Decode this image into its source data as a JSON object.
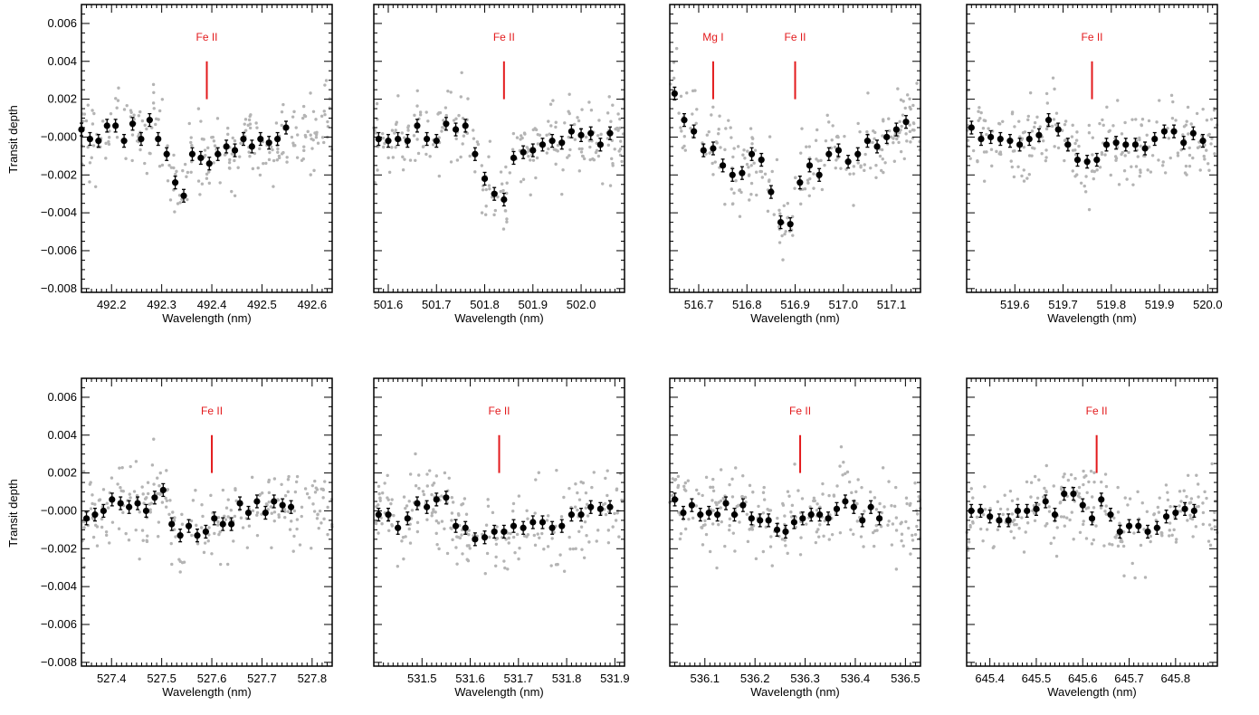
{
  "figure": {
    "ylabel": "Transit depth"
  },
  "colors": {
    "scatter": "#b4b4b4",
    "binned": "#000000",
    "marker": "#e31a1c",
    "axes": "#000000"
  },
  "chart_data": [
    {
      "type": "scatter",
      "line_label": "Fe II",
      "line_wavelength": 492.39,
      "xlabel": "Wavelength (nm)",
      "ylabel": "Transit depth",
      "xlim": [
        492.14,
        492.64
      ],
      "ylim": [
        -0.0082,
        0.007
      ],
      "xticks": [
        "492.2",
        "492.3",
        "492.4",
        "492.5",
        "492.6"
      ],
      "yticks": [
        "−0.008",
        "−0.006",
        "−0.004",
        "−0.002",
        "−0.000",
        "0.002",
        "0.004",
        "0.006"
      ],
      "series": [
        {
          "values": [
            [
              492.14,
              0.0004
            ],
            [
              492.157,
              -0.0001
            ],
            [
              492.174,
              -0.0002
            ],
            [
              492.191,
              0.0006
            ],
            [
              492.208,
              0.0006
            ],
            [
              492.225,
              -0.0002
            ],
            [
              492.242,
              0.0007
            ],
            [
              492.259,
              -0.0001
            ],
            [
              492.276,
              0.0009
            ],
            [
              492.293,
              -0.0001
            ],
            [
              492.31,
              -0.0009
            ],
            [
              492.327,
              -0.0024
            ],
            [
              492.344,
              -0.0031
            ],
            [
              492.361,
              -0.0009
            ],
            [
              492.378,
              -0.0011
            ],
            [
              492.395,
              -0.0014
            ],
            [
              492.412,
              -0.0009
            ],
            [
              492.429,
              -0.0005
            ],
            [
              492.446,
              -0.0007
            ],
            [
              492.463,
              -0.0001
            ],
            [
              492.48,
              -0.0005
            ],
            [
              492.497,
              -0.0001
            ],
            [
              492.514,
              -0.0003
            ],
            [
              492.531,
              -0.0001
            ],
            [
              492.548,
              0.0005
            ]
          ]
        }
      ]
    },
    {
      "type": "scatter",
      "line_label": "Fe II",
      "line_wavelength": 501.84,
      "xlabel": "Wavelength (nm)",
      "ylabel": "",
      "xlim": [
        501.57,
        502.09
      ],
      "ylim": [
        -0.0082,
        0.007
      ],
      "xticks": [
        "501.6",
        "501.7",
        "501.8",
        "501.9",
        "502.0"
      ],
      "series": [
        {
          "values": [
            [
              501.58,
              -0.0001
            ],
            [
              501.6,
              -0.0002
            ],
            [
              501.62,
              -0.0001
            ],
            [
              501.64,
              -0.0002
            ],
            [
              501.66,
              0.0006
            ],
            [
              501.68,
              -0.0001
            ],
            [
              501.7,
              -0.0002
            ],
            [
              501.72,
              0.0007
            ],
            [
              501.74,
              0.0004
            ],
            [
              501.76,
              0.0006
            ],
            [
              501.78,
              -0.0009
            ],
            [
              501.8,
              -0.0022
            ],
            [
              501.82,
              -0.003
            ],
            [
              501.84,
              -0.0033
            ],
            [
              501.86,
              -0.0011
            ],
            [
              501.88,
              -0.0008
            ],
            [
              501.9,
              -0.0007
            ],
            [
              501.92,
              -0.0004
            ],
            [
              501.94,
              -0.0002
            ],
            [
              501.96,
              -0.0003
            ],
            [
              501.98,
              0.0003
            ],
            [
              502.0,
              0.0001
            ],
            [
              502.02,
              0.0002
            ],
            [
              502.04,
              -0.0004
            ],
            [
              502.06,
              0.0002
            ]
          ]
        }
      ]
    },
    {
      "type": "scatter",
      "line_label": "Fe II",
      "line_wavelength": 516.9,
      "secondary_line": {
        "label": "Mg I",
        "wavelength": 516.73
      },
      "xlabel": "Wavelength (nm)",
      "ylabel": "",
      "xlim": [
        516.64,
        517.16
      ],
      "ylim": [
        -0.0082,
        0.007
      ],
      "xticks": [
        "516.7",
        "516.8",
        "516.9",
        "517.0",
        "517.1"
      ],
      "series": [
        {
          "values": [
            [
              516.65,
              0.0023
            ],
            [
              516.67,
              0.0009
            ],
            [
              516.69,
              0.0003
            ],
            [
              516.71,
              -0.0007
            ],
            [
              516.73,
              -0.0006
            ],
            [
              516.75,
              -0.0015
            ],
            [
              516.77,
              -0.002
            ],
            [
              516.79,
              -0.0019
            ],
            [
              516.81,
              -0.0009
            ],
            [
              516.83,
              -0.0012
            ],
            [
              516.85,
              -0.0029
            ],
            [
              516.87,
              -0.0045
            ],
            [
              516.89,
              -0.0046
            ],
            [
              516.91,
              -0.0024
            ],
            [
              516.93,
              -0.0015
            ],
            [
              516.95,
              -0.002
            ],
            [
              516.97,
              -0.0009
            ],
            [
              516.99,
              -0.0007
            ],
            [
              517.01,
              -0.0013
            ],
            [
              517.03,
              -0.0009
            ],
            [
              517.05,
              -0.0002
            ],
            [
              517.07,
              -0.0005
            ],
            [
              517.09,
              0.0
            ],
            [
              517.11,
              0.0004
            ],
            [
              517.13,
              0.0008
            ]
          ]
        }
      ]
    },
    {
      "type": "scatter",
      "line_label": "Fe II",
      "line_wavelength": 519.76,
      "xlabel": "Wavelength (nm)",
      "ylabel": "",
      "xlim": [
        519.5,
        520.02
      ],
      "ylim": [
        -0.0082,
        0.007
      ],
      "xticks": [
        "519.6",
        "519.7",
        "519.8",
        "519.9",
        "520.0"
      ],
      "series": [
        {
          "values": [
            [
              519.51,
              0.0005
            ],
            [
              519.53,
              -0.0001
            ],
            [
              519.55,
              0.0
            ],
            [
              519.57,
              -0.0001
            ],
            [
              519.59,
              -0.0002
            ],
            [
              519.61,
              -0.0004
            ],
            [
              519.63,
              -0.0001
            ],
            [
              519.65,
              0.0001
            ],
            [
              519.67,
              0.0009
            ],
            [
              519.69,
              0.0004
            ],
            [
              519.71,
              -0.0004
            ],
            [
              519.73,
              -0.0012
            ],
            [
              519.75,
              -0.0013
            ],
            [
              519.77,
              -0.0012
            ],
            [
              519.79,
              -0.0004
            ],
            [
              519.81,
              -0.0003
            ],
            [
              519.83,
              -0.0004
            ],
            [
              519.85,
              -0.0004
            ],
            [
              519.87,
              -0.0006
            ],
            [
              519.89,
              -0.0001
            ],
            [
              519.91,
              0.0003
            ],
            [
              519.93,
              0.0003
            ],
            [
              519.95,
              -0.0003
            ],
            [
              519.97,
              0.0002
            ],
            [
              519.99,
              -0.0002
            ]
          ]
        }
      ]
    },
    {
      "type": "scatter",
      "line_label": "Fe II",
      "line_wavelength": 527.6,
      "xlabel": "Wavelength (nm)",
      "ylabel": "Transit depth",
      "xlim": [
        527.34,
        527.84
      ],
      "ylim": [
        -0.0082,
        0.007
      ],
      "xticks": [
        "527.4",
        "527.5",
        "527.6",
        "527.7",
        "527.8"
      ],
      "yticks": [
        "−0.008",
        "−0.006",
        "−0.004",
        "−0.002",
        "−0.000",
        "0.002",
        "0.004",
        "0.006"
      ],
      "series": [
        {
          "values": [
            [
              527.35,
              -0.0004
            ],
            [
              527.367,
              -0.0002
            ],
            [
              527.384,
              0.0
            ],
            [
              527.401,
              0.0006
            ],
            [
              527.418,
              0.0004
            ],
            [
              527.435,
              0.0002
            ],
            [
              527.452,
              0.0004
            ],
            [
              527.469,
              0.0
            ],
            [
              527.486,
              0.0007
            ],
            [
              527.503,
              0.0011
            ],
            [
              527.52,
              -0.0007
            ],
            [
              527.537,
              -0.0013
            ],
            [
              527.554,
              -0.0008
            ],
            [
              527.571,
              -0.0013
            ],
            [
              527.588,
              -0.0011
            ],
            [
              527.605,
              -0.0004
            ],
            [
              527.622,
              -0.0007
            ],
            [
              527.639,
              -0.0007
            ],
            [
              527.656,
              0.0004
            ],
            [
              527.673,
              -0.0001
            ],
            [
              527.69,
              0.0005
            ],
            [
              527.707,
              -0.0001
            ],
            [
              527.724,
              0.0005
            ],
            [
              527.741,
              0.0003
            ],
            [
              527.758,
              0.0002
            ]
          ]
        }
      ]
    },
    {
      "type": "scatter",
      "line_label": "Fe II",
      "line_wavelength": 531.66,
      "xlabel": "Wavelength (nm)",
      "ylabel": "",
      "xlim": [
        531.4,
        531.92
      ],
      "ylim": [
        -0.0082,
        0.007
      ],
      "xticks": [
        "531.5",
        "531.6",
        "531.7",
        "531.8",
        "531.9"
      ],
      "series": [
        {
          "values": [
            [
              531.41,
              -0.0002
            ],
            [
              531.43,
              -0.0002
            ],
            [
              531.45,
              -0.0009
            ],
            [
              531.47,
              -0.0004
            ],
            [
              531.49,
              0.0004
            ],
            [
              531.51,
              0.0002
            ],
            [
              531.53,
              0.0006
            ],
            [
              531.55,
              0.0007
            ],
            [
              531.57,
              -0.0008
            ],
            [
              531.59,
              -0.0009
            ],
            [
              531.61,
              -0.0015
            ],
            [
              531.63,
              -0.0014
            ],
            [
              531.65,
              -0.0011
            ],
            [
              531.67,
              -0.0011
            ],
            [
              531.69,
              -0.0008
            ],
            [
              531.71,
              -0.0009
            ],
            [
              531.73,
              -0.0006
            ],
            [
              531.75,
              -0.0006
            ],
            [
              531.77,
              -0.0009
            ],
            [
              531.79,
              -0.0008
            ],
            [
              531.81,
              -0.0002
            ],
            [
              531.83,
              -0.0002
            ],
            [
              531.85,
              0.0002
            ],
            [
              531.87,
              0.0001
            ],
            [
              531.89,
              0.0002
            ]
          ]
        }
      ]
    },
    {
      "type": "scatter",
      "line_label": "Fe II",
      "line_wavelength": 536.29,
      "xlabel": "Wavelength (nm)",
      "ylabel": "",
      "xlim": [
        536.03,
        536.53
      ],
      "ylim": [
        -0.0082,
        0.007
      ],
      "xticks": [
        "536.1",
        "536.2",
        "536.3",
        "536.4",
        "536.5"
      ],
      "series": [
        {
          "values": [
            [
              536.04,
              0.0006
            ],
            [
              536.057,
              -0.0001
            ],
            [
              536.074,
              0.0003
            ],
            [
              536.091,
              -0.0002
            ],
            [
              536.108,
              -0.0001
            ],
            [
              536.125,
              -0.0002
            ],
            [
              536.142,
              0.0004
            ],
            [
              536.159,
              -0.0002
            ],
            [
              536.176,
              0.0003
            ],
            [
              536.193,
              -0.0004
            ],
            [
              536.21,
              -0.0005
            ],
            [
              536.227,
              -0.0005
            ],
            [
              536.244,
              -0.001
            ],
            [
              536.261,
              -0.0011
            ],
            [
              536.278,
              -0.0006
            ],
            [
              536.295,
              -0.0004
            ],
            [
              536.312,
              -0.0002
            ],
            [
              536.329,
              -0.0002
            ],
            [
              536.346,
              -0.0004
            ],
            [
              536.363,
              0.0001
            ],
            [
              536.38,
              0.0005
            ],
            [
              536.397,
              0.0002
            ],
            [
              536.414,
              -0.0005
            ],
            [
              536.431,
              0.0002
            ],
            [
              536.448,
              -0.0004
            ]
          ]
        }
      ]
    },
    {
      "type": "scatter",
      "line_label": "Fe II",
      "line_wavelength": 645.63,
      "xlabel": "Wavelength (nm)",
      "ylabel": "",
      "xlim": [
        645.35,
        645.89
      ],
      "ylim": [
        -0.0082,
        0.007
      ],
      "xticks": [
        "645.4",
        "645.5",
        "645.6",
        "645.7",
        "645.8"
      ],
      "series": [
        {
          "values": [
            [
              645.36,
              0.0
            ],
            [
              645.38,
              0.0
            ],
            [
              645.4,
              -0.0003
            ],
            [
              645.42,
              -0.0005
            ],
            [
              645.44,
              -0.0005
            ],
            [
              645.46,
              0.0
            ],
            [
              645.48,
              0.0
            ],
            [
              645.5,
              0.0001
            ],
            [
              645.52,
              0.0005
            ],
            [
              645.54,
              -0.0002
            ],
            [
              645.56,
              0.0009
            ],
            [
              645.58,
              0.0009
            ],
            [
              645.6,
              0.0003
            ],
            [
              645.62,
              -0.0004
            ],
            [
              645.64,
              0.0006
            ],
            [
              645.66,
              -0.0002
            ],
            [
              645.68,
              -0.0011
            ],
            [
              645.7,
              -0.0008
            ],
            [
              645.72,
              -0.0008
            ],
            [
              645.74,
              -0.0011
            ],
            [
              645.76,
              -0.0009
            ],
            [
              645.78,
              -0.0003
            ],
            [
              645.8,
              -0.0001
            ],
            [
              645.82,
              0.0001
            ],
            [
              645.84,
              0.0
            ]
          ]
        }
      ]
    }
  ]
}
